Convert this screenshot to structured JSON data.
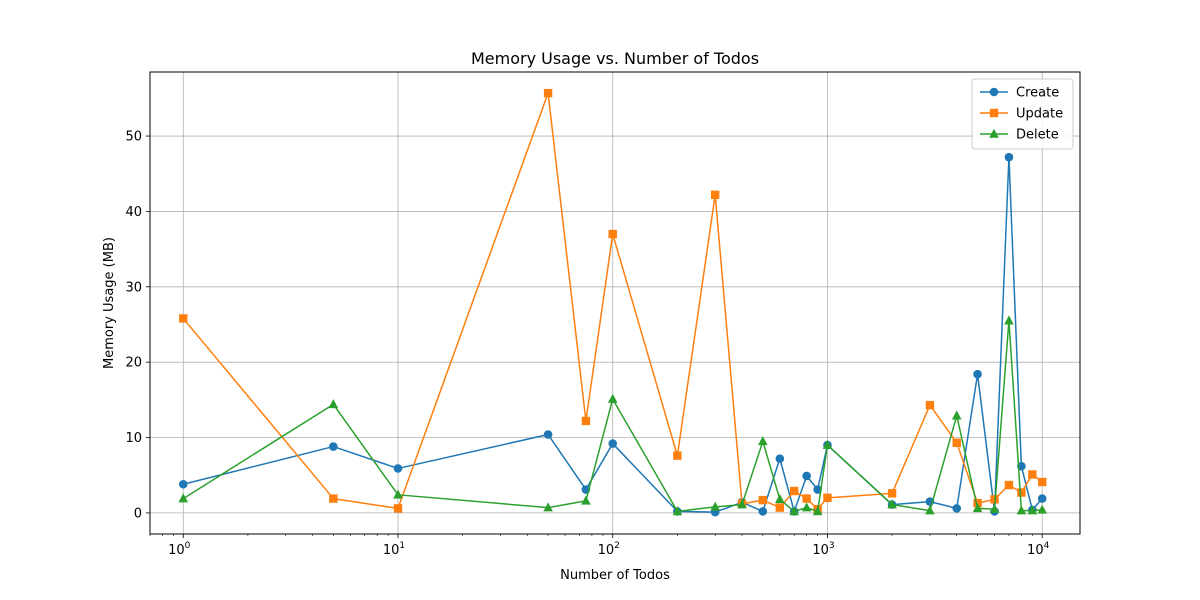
{
  "chart_data": {
    "type": "line",
    "title": "Memory Usage vs. Number of Todos",
    "xlabel": "Number of Todos",
    "ylabel": "Memory Usage (MB)",
    "xscale": "log",
    "xlim": [
      0.7,
      15000
    ],
    "ylim": [
      -2.8,
      58.5
    ],
    "xticks": [
      {
        "value": 1,
        "base": "10",
        "exp": "0"
      },
      {
        "value": 10,
        "base": "10",
        "exp": "1"
      },
      {
        "value": 100,
        "base": "10",
        "exp": "2"
      },
      {
        "value": 1000,
        "base": "10",
        "exp": "3"
      },
      {
        "value": 10000,
        "base": "10",
        "exp": "4"
      }
    ],
    "yticks": [
      0,
      10,
      20,
      30,
      40,
      50
    ],
    "grid": true,
    "legend_position": "top-right",
    "x": [
      1,
      5,
      10,
      50,
      75,
      100,
      200,
      300,
      400,
      500,
      600,
      700,
      800,
      900,
      1000,
      2000,
      3000,
      4000,
      5000,
      6000,
      7000,
      8000,
      9000,
      10000
    ],
    "series": [
      {
        "name": "Create",
        "color": "#1f77b4",
        "marker": "circle",
        "values": [
          3.8,
          8.8,
          5.9,
          10.4,
          3.1,
          9.2,
          0.2,
          0.1,
          1.4,
          0.2,
          7.2,
          0.2,
          4.9,
          3.1,
          9.0,
          1.1,
          1.5,
          0.6,
          18.4,
          0.2,
          47.2,
          6.2,
          0.4,
          1.9
        ]
      },
      {
        "name": "Update",
        "color": "#ff7f0e",
        "marker": "square",
        "values": [
          25.8,
          1.9,
          0.6,
          55.7,
          12.2,
          37.0,
          7.6,
          42.2,
          1.2,
          1.7,
          0.7,
          2.9,
          1.9,
          0.5,
          2.0,
          2.6,
          14.3,
          9.3,
          1.3,
          1.8,
          3.7,
          2.7,
          5.1,
          4.1
        ]
      },
      {
        "name": "Delete",
        "color": "#2ca02c",
        "marker": "triangle",
        "values": [
          1.9,
          14.4,
          2.4,
          0.7,
          1.6,
          15.1,
          0.2,
          0.8,
          1.1,
          9.5,
          1.8,
          0.2,
          0.7,
          0.2,
          9.0,
          1.1,
          0.3,
          12.9,
          0.6,
          0.5,
          25.5,
          0.3,
          0.3,
          0.4
        ]
      }
    ]
  }
}
